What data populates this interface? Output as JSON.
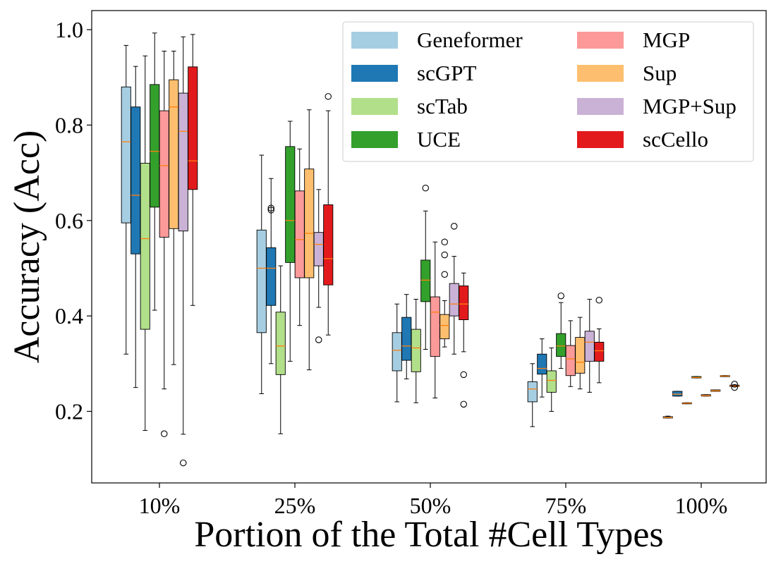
{
  "chart_data": {
    "type": "box",
    "title": "",
    "xlabel": "Portion of the Total #Cell Types",
    "ylabel": "Accuracy (Acc)",
    "ylim": [
      0.05,
      1.04
    ],
    "yticks": [
      "0.2",
      "0.4",
      "0.6",
      "0.8",
      "1.0"
    ],
    "categories": [
      "10%",
      "25%",
      "50%",
      "75%",
      "100%"
    ],
    "legend_position": "top-right",
    "series": [
      {
        "name": "Geneformer",
        "color": "#a6cee3",
        "boxes": [
          {
            "whislo": 0.32,
            "q1": 0.595,
            "med": 0.765,
            "q3": 0.88,
            "whishi": 0.967,
            "fliers": []
          },
          {
            "whislo": 0.237,
            "q1": 0.365,
            "med": 0.5,
            "q3": 0.58,
            "whishi": 0.737,
            "fliers": []
          },
          {
            "whislo": 0.22,
            "q1": 0.285,
            "med": 0.328,
            "q3": 0.365,
            "whishi": 0.425,
            "fliers": []
          },
          {
            "whislo": 0.168,
            "q1": 0.22,
            "med": 0.247,
            "q3": 0.262,
            "whishi": 0.3,
            "fliers": []
          },
          {
            "whislo": 0.186,
            "q1": 0.186,
            "med": 0.187,
            "q3": 0.189,
            "whishi": 0.19,
            "fliers": []
          }
        ]
      },
      {
        "name": "scGPT",
        "color": "#1f78b4",
        "boxes": [
          {
            "whislo": 0.25,
            "q1": 0.53,
            "med": 0.653,
            "q3": 0.838,
            "whishi": 0.923,
            "fliers": []
          },
          {
            "whislo": 0.3,
            "q1": 0.422,
            "med": 0.5,
            "q3": 0.543,
            "whishi": 0.688,
            "fliers": [
              0.622,
              0.626
            ]
          },
          {
            "whislo": 0.268,
            "q1": 0.307,
            "med": 0.337,
            "q3": 0.397,
            "whishi": 0.445,
            "fliers": []
          },
          {
            "whislo": 0.23,
            "q1": 0.278,
            "med": 0.29,
            "q3": 0.32,
            "whishi": 0.352,
            "fliers": []
          },
          {
            "whislo": 0.232,
            "q1": 0.232,
            "med": 0.236,
            "q3": 0.242,
            "whishi": 0.242,
            "fliers": []
          }
        ]
      },
      {
        "name": "scTab",
        "color": "#b2df8a",
        "boxes": [
          {
            "whislo": 0.16,
            "q1": 0.372,
            "med": 0.562,
            "q3": 0.72,
            "whishi": 0.945,
            "fliers": []
          },
          {
            "whislo": 0.153,
            "q1": 0.277,
            "med": 0.337,
            "q3": 0.408,
            "whishi": 0.505,
            "fliers": []
          },
          {
            "whislo": 0.218,
            "q1": 0.283,
            "med": 0.333,
            "q3": 0.372,
            "whishi": 0.435,
            "fliers": []
          },
          {
            "whislo": 0.2,
            "q1": 0.24,
            "med": 0.265,
            "q3": 0.285,
            "whishi": 0.333,
            "fliers": []
          },
          {
            "whislo": 0.216,
            "q1": 0.216,
            "med": 0.217,
            "q3": 0.218,
            "whishi": 0.218,
            "fliers": []
          }
        ]
      },
      {
        "name": "UCE",
        "color": "#33a02c",
        "boxes": [
          {
            "whislo": 0.412,
            "q1": 0.628,
            "med": 0.745,
            "q3": 0.885,
            "whishi": 0.993,
            "fliers": []
          },
          {
            "whislo": 0.305,
            "q1": 0.512,
            "med": 0.6,
            "q3": 0.755,
            "whishi": 0.808,
            "fliers": []
          },
          {
            "whislo": 0.33,
            "q1": 0.43,
            "med": 0.475,
            "q3": 0.517,
            "whishi": 0.62,
            "fliers": [
              0.668
            ]
          },
          {
            "whislo": 0.29,
            "q1": 0.315,
            "med": 0.337,
            "q3": 0.363,
            "whishi": 0.428,
            "fliers": [
              0.442
            ]
          },
          {
            "whislo": 0.27,
            "q1": 0.27,
            "med": 0.271,
            "q3": 0.273,
            "whishi": 0.273,
            "fliers": []
          }
        ]
      },
      {
        "name": "MGP",
        "color": "#fb9a99",
        "boxes": [
          {
            "whislo": 0.247,
            "q1": 0.565,
            "med": 0.715,
            "q3": 0.83,
            "whishi": 0.955,
            "fliers": [
              0.153
            ]
          },
          {
            "whislo": 0.38,
            "q1": 0.48,
            "med": 0.56,
            "q3": 0.662,
            "whishi": 0.75,
            "fliers": []
          },
          {
            "whislo": 0.228,
            "q1": 0.315,
            "med": 0.408,
            "q3": 0.44,
            "whishi": 0.555,
            "fliers": []
          },
          {
            "whislo": 0.252,
            "q1": 0.275,
            "med": 0.31,
            "q3": 0.338,
            "whishi": 0.39,
            "fliers": []
          },
          {
            "whislo": 0.232,
            "q1": 0.232,
            "med": 0.233,
            "q3": 0.235,
            "whishi": 0.235,
            "fliers": []
          }
        ]
      },
      {
        "name": "Sup",
        "color": "#fdbf6f",
        "boxes": [
          {
            "whislo": 0.298,
            "q1": 0.583,
            "med": 0.838,
            "q3": 0.895,
            "whishi": 0.955,
            "fliers": []
          },
          {
            "whislo": 0.287,
            "q1": 0.48,
            "med": 0.573,
            "q3": 0.708,
            "whishi": 0.832,
            "fliers": []
          },
          {
            "whislo": 0.335,
            "q1": 0.352,
            "med": 0.38,
            "q3": 0.403,
            "whishi": 0.432,
            "fliers": [
              0.487,
              0.528,
              0.555
            ]
          },
          {
            "whislo": 0.247,
            "q1": 0.28,
            "med": 0.303,
            "q3": 0.355,
            "whishi": 0.397,
            "fliers": []
          },
          {
            "whislo": 0.242,
            "q1": 0.242,
            "med": 0.243,
            "q3": 0.245,
            "whishi": 0.245,
            "fliers": []
          }
        ]
      },
      {
        "name": "MGP+Sup",
        "color": "#cab2d6",
        "boxes": [
          {
            "whislo": 0.152,
            "q1": 0.578,
            "med": 0.787,
            "q3": 0.867,
            "whishi": 0.985,
            "fliers": [
              0.092
            ]
          },
          {
            "whislo": 0.418,
            "q1": 0.505,
            "med": 0.55,
            "q3": 0.575,
            "whishi": 0.665,
            "fliers": [
              0.35
            ]
          },
          {
            "whislo": 0.32,
            "q1": 0.4,
            "med": 0.425,
            "q3": 0.468,
            "whishi": 0.525,
            "fliers": [
              0.588
            ]
          },
          {
            "whislo": 0.24,
            "q1": 0.305,
            "med": 0.345,
            "q3": 0.368,
            "whishi": 0.435,
            "fliers": []
          },
          {
            "whislo": 0.273,
            "q1": 0.273,
            "med": 0.274,
            "q3": 0.275,
            "whishi": 0.275,
            "fliers": []
          }
        ]
      },
      {
        "name": "scCello",
        "color": "#e31a1c",
        "boxes": [
          {
            "whislo": 0.422,
            "q1": 0.665,
            "med": 0.725,
            "q3": 0.922,
            "whishi": 0.99,
            "fliers": []
          },
          {
            "whislo": 0.36,
            "q1": 0.465,
            "med": 0.52,
            "q3": 0.633,
            "whishi": 0.83,
            "fliers": [
              0.86
            ]
          },
          {
            "whislo": 0.325,
            "q1": 0.392,
            "med": 0.425,
            "q3": 0.463,
            "whishi": 0.49,
            "fliers": [
              0.277,
              0.215
            ]
          },
          {
            "whislo": 0.26,
            "q1": 0.305,
            "med": 0.327,
            "q3": 0.345,
            "whishi": 0.373,
            "fliers": [
              0.433
            ]
          },
          {
            "whislo": 0.252,
            "q1": 0.252,
            "med": 0.253,
            "q3": 0.255,
            "whishi": 0.255,
            "fliers": [
              0.25,
              0.257
            ]
          }
        ]
      }
    ]
  }
}
